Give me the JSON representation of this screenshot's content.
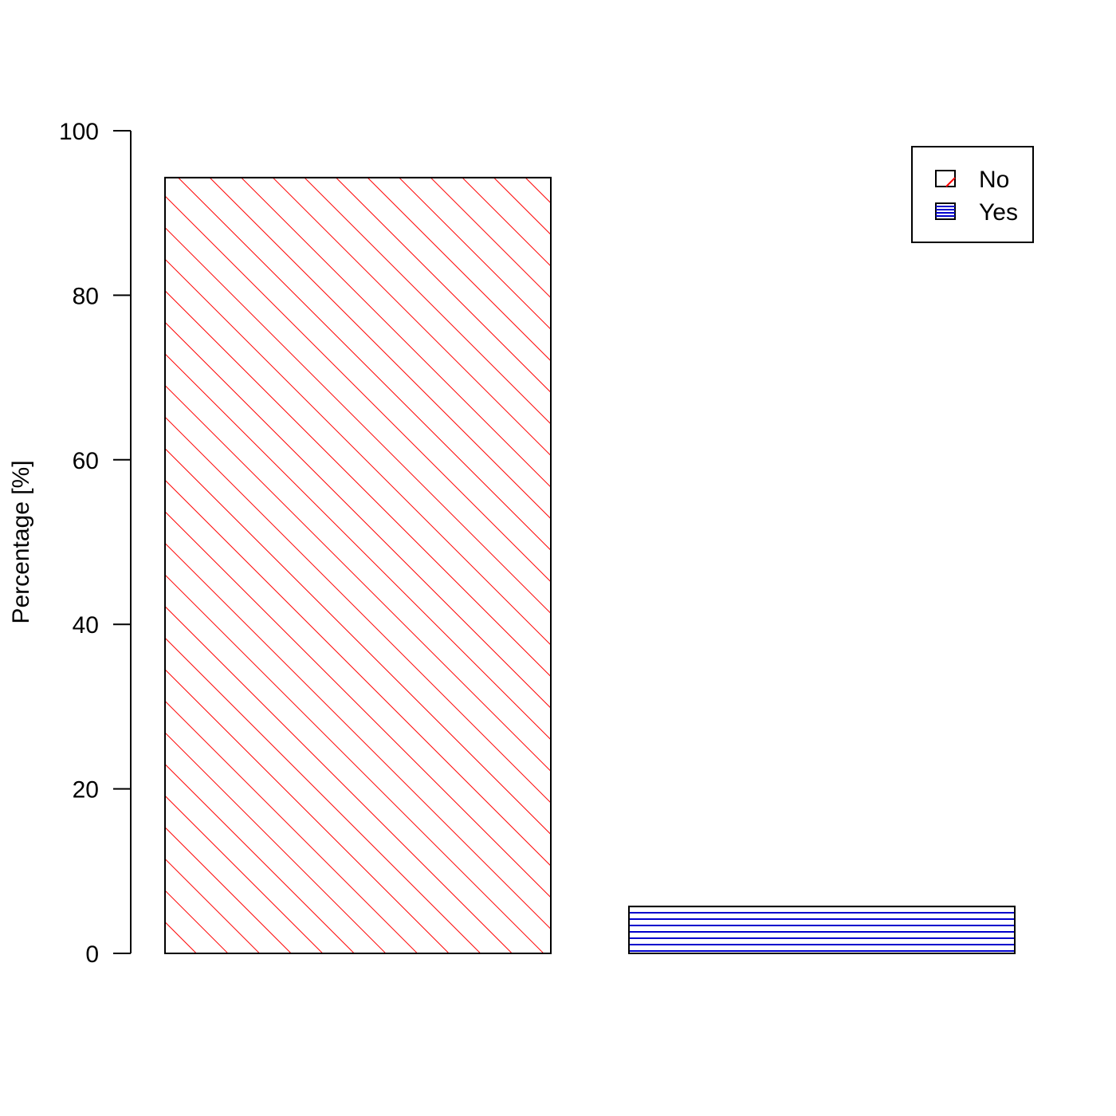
{
  "chart_data": {
    "type": "bar",
    "title": "",
    "xlabel": "",
    "ylabel": "Percentage [%]",
    "categories": [
      "No",
      "Yes"
    ],
    "values": [
      94.3,
      5.7
    ],
    "ylim": [
      0,
      100
    ],
    "yticks": [
      0,
      20,
      40,
      60,
      80,
      100
    ],
    "grid": false,
    "legend": {
      "position": "top-right",
      "entries": [
        {
          "label": "No",
          "color": "#ff0000",
          "pattern": "diagonal-hatch"
        },
        {
          "label": "Yes",
          "color": "#0000cc",
          "pattern": "horizontal-hatch"
        }
      ]
    },
    "bar_colors": [
      "#ff0000",
      "#0000cc"
    ],
    "bar_patterns": [
      "diagonal-hatch",
      "horizontal-hatch"
    ]
  }
}
